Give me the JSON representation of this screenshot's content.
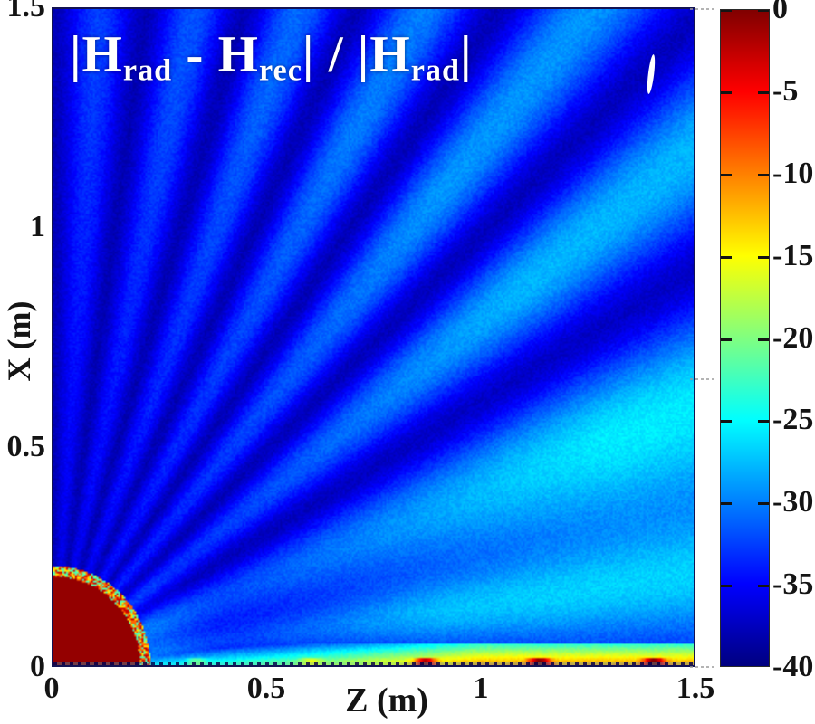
{
  "figure": {
    "title_runs": [
      {
        "text": "|H",
        "sub": false
      },
      {
        "text": "rad",
        "sub": true
      },
      {
        "text": " - H",
        "sub": false
      },
      {
        "text": "rec",
        "sub": true
      },
      {
        "text": "| / |H",
        "sub": false
      },
      {
        "text": "rad",
        "sub": true
      },
      {
        "text": "|",
        "sub": false
      }
    ],
    "x_tick_labels": [
      "0",
      "0.5",
      "1",
      "1.5"
    ],
    "y_tick_labels": [
      "1.5",
      "1",
      "0.5",
      "0"
    ],
    "colorbar_tick_labels": [
      "0",
      "-5",
      "-10",
      "-15",
      "-20",
      "-25",
      "-30",
      "-35",
      "-40"
    ]
  },
  "chart_data": {
    "type": "heatmap",
    "title": "|Hrad - Hrec| / |Hrad|",
    "xlabel": "Z (m)",
    "ylabel": "X (m)",
    "xlim": [
      0,
      1.5
    ],
    "ylim": [
      0,
      1.5
    ],
    "x_ticks": [
      0,
      0.5,
      1,
      1.5
    ],
    "y_ticks": [
      0,
      0.5,
      1,
      1.5
    ],
    "colormap": "jet",
    "grid": false,
    "colorbar": {
      "min": -40,
      "max": 0,
      "tick_step": -5,
      "ticks": [
        0,
        -5,
        -10,
        -15,
        -20,
        -25,
        -30,
        -35,
        -40
      ],
      "position": "right"
    },
    "features": [
      "dark-red quarter-disk scatterer at origin, radius ~0.21 m, saturated at 0 dB",
      "speckled yellow/orange/cyan ring at disk boundary",
      "about 7 radial interference lobes fanning from origin; lobes widen and brighten (to ~-24 dB cyan) toward the z-axis, narrow and dim (~-33 dB) toward the x-axis",
      "dark navy background ~-38 dB between lobes",
      "bright boundary layer along z-axis rising from ~-27 dB (cyan) near z=0.2 to ~-10 dB (orange) at z=1.5, with periodic ~0 dB dark-red blobs every ~0.13 m for z>0.75",
      "small white sliver artifact near z=1.27 m, x=1.41 m"
    ],
    "render_params": {
      "db_min": -40,
      "db_max": 0,
      "background_db": -38,
      "disk_radius_m": 0.215,
      "disk_db": -0.8,
      "ring_halfwidth_m": 0.012,
      "fringe_count": 7,
      "fringe_sharpness": 1.6,
      "beam_base_amp_db": 13,
      "beam_tilt_db": 8,
      "radial_gain_floor": 0.25,
      "radial_gain_r_m": 1.4,
      "low_beam": {
        "center_rad": 0.13,
        "width_rad": 0.09,
        "amp_db": 8,
        "r_scale_m": 0.9
      },
      "near_glow": {
        "amp_db": 5,
        "r_width_m": 0.13,
        "theta_width_rad": 0.6
      },
      "horizon_boost": {
        "amp_db": 3.5,
        "theta_scale_rad": 0.35,
        "r_scale_m": 1.2
      },
      "boundary_strip": {
        "height_m": 0.05,
        "start_db": -27,
        "end_db": -10,
        "ramp_start_z": 0.15,
        "ramp_end_z": 1.0,
        "spot_period_m": 0.134,
        "spot_amp_far_db": 13,
        "spot_amp_near_db": 5,
        "spot_threshold_z": 0.75,
        "top_falloff_db": 14
      },
      "noise_db": 1.6
    },
    "annotations": [
      {
        "name": "white-sliver",
        "z_m": 1.27,
        "x_m": 1.41
      }
    ]
  }
}
